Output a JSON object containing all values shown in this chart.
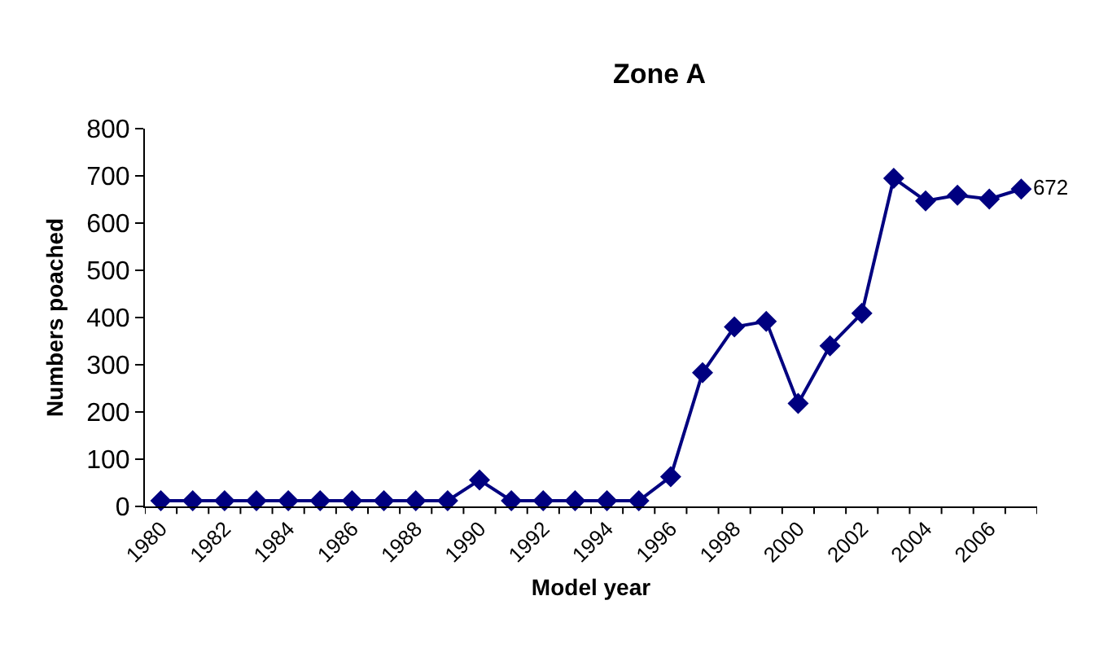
{
  "chart_data": {
    "type": "line",
    "title": "Zone A",
    "xlabel": "Model year",
    "ylabel": "Numbers poached",
    "categories": [
      "1980",
      null,
      "1982",
      null,
      "1984",
      null,
      "1986",
      null,
      "1988",
      null,
      "1990",
      null,
      "1992",
      null,
      "1994",
      null,
      "1996",
      null,
      "1998",
      null,
      "2000",
      null,
      "2002",
      null,
      "2004",
      null,
      "2006",
      null
    ],
    "series": [
      {
        "color": "#000080",
        "values": [
          12,
          12,
          12,
          12,
          12,
          12,
          12,
          12,
          12,
          12,
          56,
          12,
          12,
          12,
          12,
          12,
          63,
          283,
          380,
          392,
          218,
          340,
          409,
          695,
          647,
          659,
          651,
          672
        ],
        "value_labels": [
          null,
          null,
          null,
          null,
          null,
          null,
          null,
          null,
          null,
          null,
          null,
          null,
          null,
          null,
          null,
          null,
          null,
          null,
          null,
          null,
          null,
          null,
          null,
          null,
          null,
          null,
          null,
          "672"
        ]
      }
    ],
    "ylim": [
      0,
      800
    ],
    "yticks": [
      0,
      100,
      200,
      300,
      400,
      500,
      600,
      700,
      800
    ],
    "grid": false,
    "marker": "diamond",
    "line_style": "solid"
  }
}
